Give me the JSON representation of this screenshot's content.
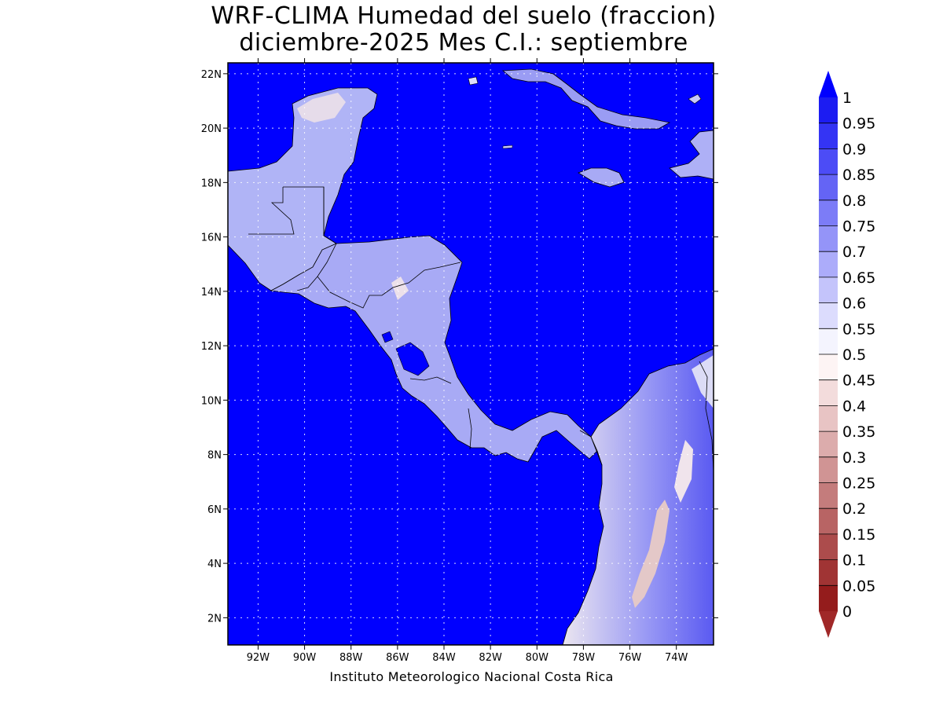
{
  "title": {
    "line1": "WRF-CLIMA Humedad del suelo (fraccion)",
    "line2": "diciembre-2025 Mes C.I.: septiembre"
  },
  "credit": "Instituto Meteorologico Nacional Costa Rica",
  "map": {
    "lon_range": [
      -93.3,
      -72.4
    ],
    "lat_range": [
      1.0,
      22.4
    ],
    "lat_ticks": [
      {
        "value": 22,
        "label": "22N"
      },
      {
        "value": 20,
        "label": "20N"
      },
      {
        "value": 18,
        "label": "18N"
      },
      {
        "value": 16,
        "label": "16N"
      },
      {
        "value": 14,
        "label": "14N"
      },
      {
        "value": 12,
        "label": "12N"
      },
      {
        "value": 10,
        "label": "10N"
      },
      {
        "value": 8,
        "label": "8N"
      },
      {
        "value": 6,
        "label": "6N"
      },
      {
        "value": 4,
        "label": "4N"
      },
      {
        "value": 2,
        "label": "2N"
      }
    ],
    "lon_ticks": [
      {
        "value": -92,
        "label": "92W"
      },
      {
        "value": -90,
        "label": "90W"
      },
      {
        "value": -88,
        "label": "88W"
      },
      {
        "value": -86,
        "label": "86W"
      },
      {
        "value": -84,
        "label": "84W"
      },
      {
        "value": -82,
        "label": "82W"
      },
      {
        "value": -80,
        "label": "80W"
      },
      {
        "value": -78,
        "label": "78W"
      },
      {
        "value": -76,
        "label": "76W"
      },
      {
        "value": -74,
        "label": "74W"
      }
    ],
    "grid": true,
    "ocean_color": "#0000ff"
  },
  "colorbar": {
    "labels": [
      "1",
      "0.95",
      "0.9",
      "0.85",
      "0.8",
      "0.75",
      "0.7",
      "0.65",
      "0.6",
      "0.55",
      "0.5",
      "0.45",
      "0.4",
      "0.35",
      "0.3",
      "0.25",
      "0.2",
      "0.15",
      "0.1",
      "0.05",
      "0"
    ],
    "colors": [
      "#1c1cf2",
      "#3434f4",
      "#4c4cf6",
      "#6464f5",
      "#7c7cf7",
      "#9494f8",
      "#acacfa",
      "#c4c4fb",
      "#dcdcfd",
      "#f4f4fe",
      "#fdf4f4",
      "#f3dcdc",
      "#e8c4c4",
      "#dcacac",
      "#d09494",
      "#c47c7c",
      "#b86464",
      "#ac4c4c",
      "#a03434",
      "#941c1c"
    ],
    "top_arrow_color": "#0000ff",
    "bottom_arrow_color": "#a02828"
  }
}
